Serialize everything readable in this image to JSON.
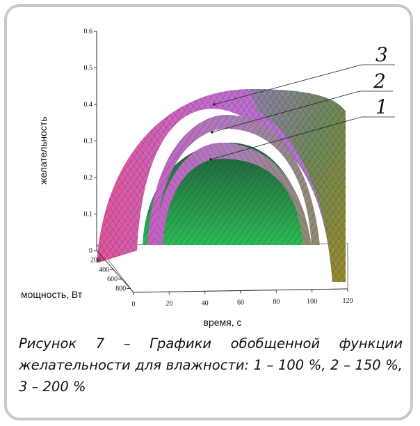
{
  "chart_data": {
    "type": "surface-3d",
    "zlabel": "желательность",
    "xlabel": "время, с",
    "ylabel": "мощность, Вт",
    "z_ticks": [
      "0",
      "0.1",
      "0.2",
      "0.3",
      "0.4",
      "0.5",
      "0.6"
    ],
    "x_ticks": [
      "0",
      "20",
      "40",
      "60",
      "80",
      "100",
      "120"
    ],
    "y_ticks": [
      "200",
      "400",
      "600",
      "800"
    ],
    "zlim": [
      0,
      0.6
    ],
    "xlim": [
      0,
      120
    ],
    "series": [
      {
        "name": "1",
        "peak_desirability": 0.24
      },
      {
        "name": "2",
        "peak_desirability": 0.32
      },
      {
        "name": "3",
        "peak_desirability": 0.4
      }
    ]
  },
  "caption": "Рисунок 7 – Графики обобщенной функции желательности для влажности: 1 – 100 %, 2 – 150 %, 3 – 200 %",
  "colors": {
    "surface_pink": "#e060c0",
    "surface_green": "#2fa24a",
    "surface_olive": "#9a8a3a",
    "mesh": "#2a2a2a",
    "frame_border": "#c8c8c8"
  }
}
